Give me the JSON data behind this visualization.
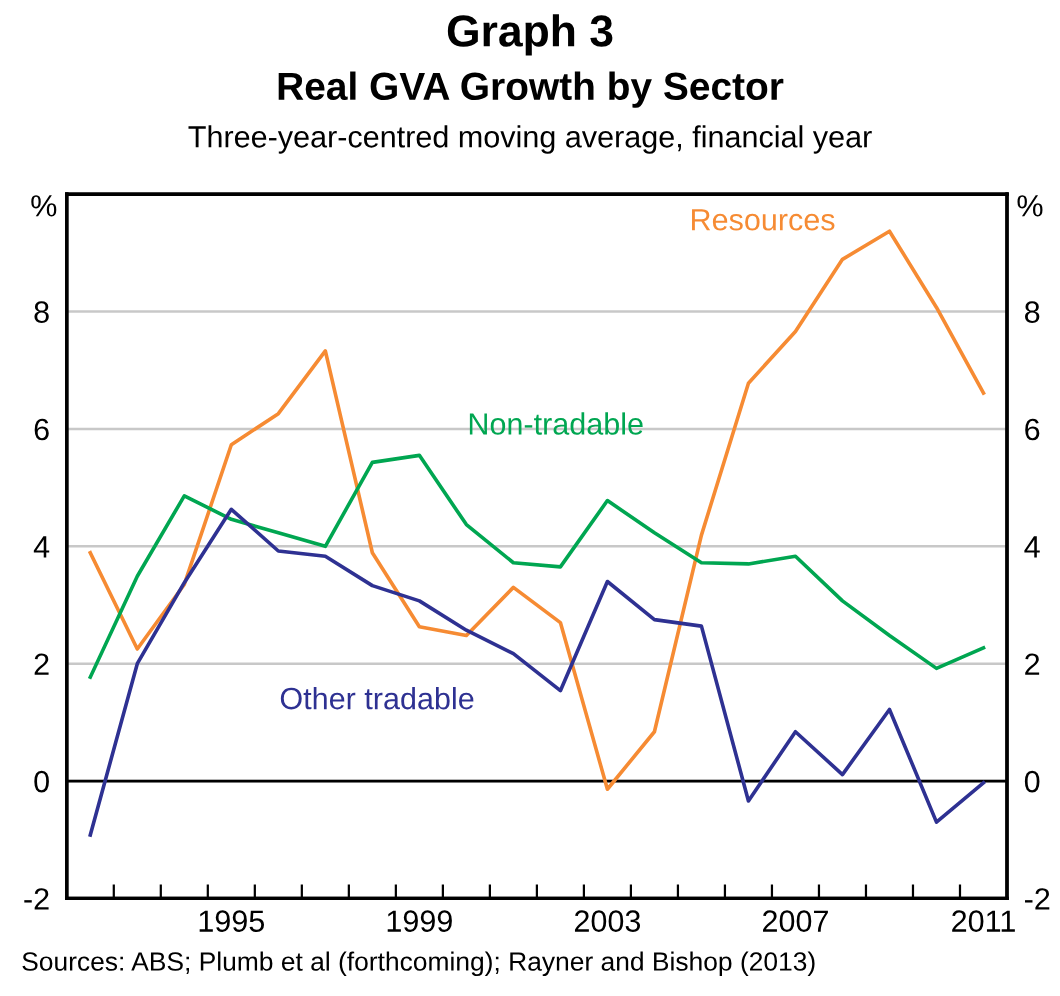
{
  "chart_data": {
    "type": "line",
    "title": "Graph 3",
    "subtitle": "Real GVA Growth by Sector",
    "annotations": [
      "Three-year-centred moving average, financial year",
      "Sources: ABS; Plumb et al (forthcoming); Rayner and Bishop (2013)"
    ],
    "ylabel": "%",
    "y2label": "%",
    "x": [
      1992,
      1993,
      1994,
      1995,
      1996,
      1997,
      1998,
      1999,
      2000,
      2001,
      2002,
      2003,
      2004,
      2005,
      2006,
      2007,
      2008,
      2009,
      2010,
      2011
    ],
    "series": [
      {
        "name": "Resources",
        "color": "#f68b33",
        "values": [
          3.89,
          2.25,
          3.35,
          5.73,
          6.26,
          7.33,
          3.89,
          2.63,
          2.48,
          3.3,
          2.7,
          -0.14,
          0.84,
          4.19,
          6.78,
          7.66,
          8.89,
          9.37,
          8.07,
          6.61
        ]
      },
      {
        "name": "Non-tradable",
        "color": "#00a651",
        "values": [
          1.77,
          3.49,
          4.86,
          4.46,
          4.23,
          4.0,
          5.43,
          5.55,
          4.37,
          3.72,
          3.65,
          4.78,
          4.23,
          3.72,
          3.7,
          3.83,
          3.07,
          2.48,
          1.92,
          2.27
        ]
      },
      {
        "name": "Other tradable",
        "color": "#2e3192",
        "values": [
          -0.92,
          2.0,
          3.38,
          4.63,
          3.92,
          3.83,
          3.33,
          3.07,
          2.57,
          2.17,
          1.54,
          3.4,
          2.75,
          2.64,
          -0.34,
          0.84,
          0.11,
          1.22,
          -0.7,
          -0.03
        ]
      }
    ],
    "xlim": [
      1991.5,
      2011.5
    ],
    "xticks": [
      {
        "value": 1992.5,
        "label": null
      },
      {
        "value": 1993.5,
        "label": null
      },
      {
        "value": 1994.5,
        "label": null
      },
      {
        "value": 1995,
        "label": "1995"
      },
      {
        "value": 1995.5,
        "label": null
      },
      {
        "value": 1996.5,
        "label": null
      },
      {
        "value": 1997.5,
        "label": null
      },
      {
        "value": 1998.5,
        "label": null
      },
      {
        "value": 1999,
        "label": "1999"
      },
      {
        "value": 1999.5,
        "label": null
      },
      {
        "value": 2000.5,
        "label": null
      },
      {
        "value": 2001.5,
        "label": null
      },
      {
        "value": 2002.5,
        "label": null
      },
      {
        "value": 2003,
        "label": "2003"
      },
      {
        "value": 2003.5,
        "label": null
      },
      {
        "value": 2004.5,
        "label": null
      },
      {
        "value": 2005.5,
        "label": null
      },
      {
        "value": 2006.5,
        "label": null
      },
      {
        "value": 2007,
        "label": "2007"
      },
      {
        "value": 2007.5,
        "label": null
      },
      {
        "value": 2008.5,
        "label": null
      },
      {
        "value": 2009.5,
        "label": null
      },
      {
        "value": 2010.5,
        "label": null
      },
      {
        "value": 2011,
        "label": "2011"
      }
    ],
    "ylim": [
      -2,
      10
    ],
    "yticks": [
      -2,
      0,
      2,
      4,
      6,
      8
    ],
    "y2lim": [
      -2,
      10
    ],
    "y2ticks": [
      -2,
      0,
      2,
      4,
      6,
      8
    ],
    "ref_lines": [
      {
        "axis": "y",
        "value": 0,
        "color": "#000000"
      }
    ],
    "grid": "y",
    "legend": false,
    "marker": "none",
    "line_style": "solid"
  }
}
